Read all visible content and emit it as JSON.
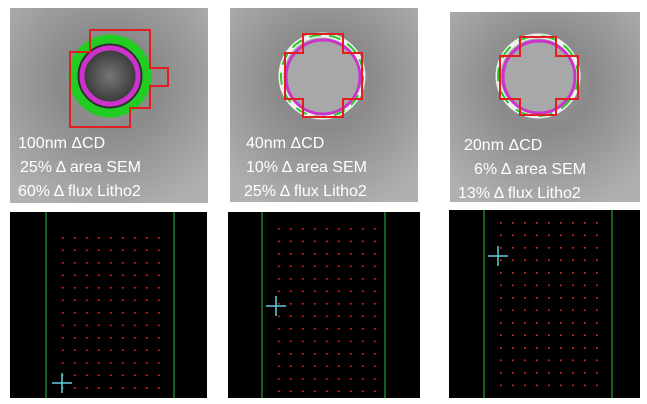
{
  "panels": [
    {
      "lines": [
        "100nm ΔCD",
        "25% Δ area SEM",
        "60% Δ flux Litho2"
      ]
    },
    {
      "lines": [
        "40nm ΔCD",
        "10% Δ area SEM",
        "25% Δ flux Litho2"
      ]
    },
    {
      "lines": [
        "20nm ΔCD",
        "6% Δ area SEM",
        "13% Δ flux Litho2"
      ]
    }
  ]
}
